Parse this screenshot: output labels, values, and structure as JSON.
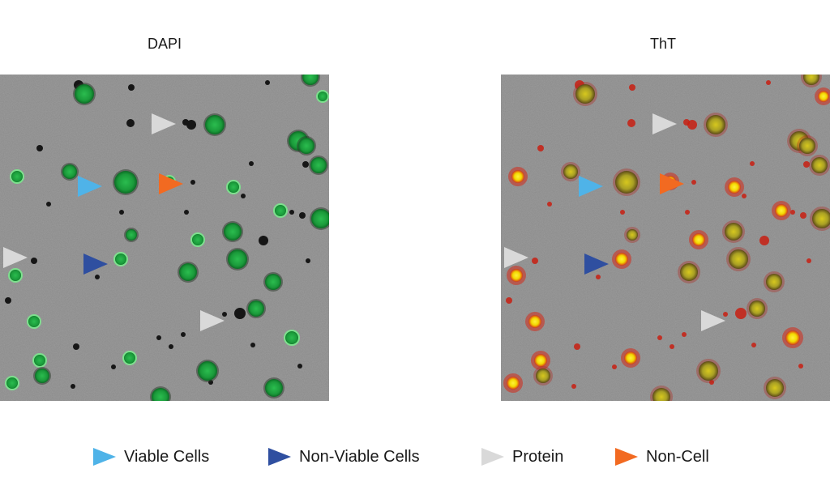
{
  "panels": {
    "left_title": "DAPI",
    "right_title": "ThT"
  },
  "legend": [
    {
      "label": "Viable Cells",
      "color": "#4fb3e8"
    },
    {
      "label": "Non-Viable Cells",
      "color": "#2f4fa0"
    },
    {
      "label": "Protein",
      "color": "#d9d9d9"
    },
    {
      "label": "Non-Cell",
      "color": "#f26a21"
    }
  ],
  "colors": {
    "background_gray": "#8c8c8c",
    "dapi_green": "#1fa03c",
    "tht_yellow": "#f4e400",
    "tht_red": "#d42a1a"
  }
}
